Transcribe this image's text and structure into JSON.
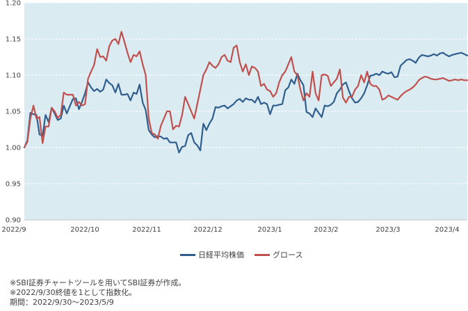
{
  "chart_data": {
    "type": "line",
    "title": "",
    "xlabel": "",
    "ylabel": "",
    "ylim": [
      0.9,
      1.2
    ],
    "yticks": [
      "0.90",
      "0.95",
      "1.00",
      "1.05",
      "1.10",
      "1.15",
      "1.20"
    ],
    "xticks": [
      "2022/9",
      "2022/10",
      "2022/11",
      "2022/12",
      "2023/1",
      "2023/2",
      "2023/3",
      "2023/4"
    ],
    "grid": true,
    "legend_position": "bottom-center",
    "colors": {
      "plot_background": "#dbebf2",
      "grid": "#ffffff"
    },
    "series": [
      {
        "name": "日経平均株価",
        "color": "#2e5d8e",
        "x": [
          "2022/9/30",
          "2022/10/3",
          "2022/10/4",
          "2022/10/5",
          "2022/10/6",
          "2022/10/7",
          "2022/10/11",
          "2022/10/12",
          "2022/10/13",
          "2022/10/14",
          "2022/10/17",
          "2022/10/18",
          "2022/10/19",
          "2022/10/20",
          "2022/10/21",
          "2022/10/24",
          "2022/10/25",
          "2022/10/26",
          "2022/10/27",
          "2022/10/28",
          "2022/10/31",
          "2022/11/1",
          "2022/11/2",
          "2022/11/4",
          "2022/11/7",
          "2022/11/8",
          "2022/11/9",
          "2022/11/10",
          "2022/11/11",
          "2022/11/14",
          "2022/11/15",
          "2022/11/16",
          "2022/11/17",
          "2022/11/18",
          "2022/11/21",
          "2022/11/22",
          "2022/11/24",
          "2022/11/25",
          "2022/11/28",
          "2022/11/29",
          "2022/11/30",
          "2022/12/1",
          "2022/12/2",
          "2022/12/5",
          "2022/12/6",
          "2022/12/7",
          "2022/12/8",
          "2022/12/9",
          "2022/12/12",
          "2022/12/13",
          "2022/12/14",
          "2022/12/15",
          "2022/12/16",
          "2022/12/19",
          "2022/12/20",
          "2022/12/21",
          "2022/12/22",
          "2022/12/23",
          "2022/12/26",
          "2022/12/27",
          "2022/12/28",
          "2022/12/29",
          "2022/12/30",
          "2023/1/4",
          "2023/1/5",
          "2023/1/6",
          "2023/1/10",
          "2023/1/11",
          "2023/1/12",
          "2023/1/13",
          "2023/1/16",
          "2023/1/17",
          "2023/1/18",
          "2023/1/19",
          "2023/1/20",
          "2023/1/23",
          "2023/1/24",
          "2023/1/25",
          "2023/1/26",
          "2023/1/27",
          "2023/1/30",
          "2023/1/31",
          "2023/2/1",
          "2023/2/2",
          "2023/2/3",
          "2023/2/6",
          "2023/2/7",
          "2023/2/8",
          "2023/2/9",
          "2023/2/10",
          "2023/2/13",
          "2023/2/14",
          "2023/2/15",
          "2023/2/16",
          "2023/2/17",
          "2023/2/20",
          "2023/2/21",
          "2023/2/22",
          "2023/2/24",
          "2023/2/27",
          "2023/2/28",
          "2023/3/1",
          "2023/3/2",
          "2023/3/3",
          "2023/3/6",
          "2023/3/7",
          "2023/3/8",
          "2023/3/9",
          "2023/3/10",
          "2023/3/13",
          "2023/3/14",
          "2023/3/15",
          "2023/3/16",
          "2023/3/17",
          "2023/3/20",
          "2023/3/22",
          "2023/3/23",
          "2023/3/24",
          "2023/3/27",
          "2023/3/28",
          "2023/3/29",
          "2023/3/30",
          "2023/3/31",
          "2023/4/3",
          "2023/4/4",
          "2023/4/5",
          "2023/4/6",
          "2023/4/7",
          "2023/4/10",
          "2023/4/11",
          "2023/4/12",
          "2023/4/13",
          "2023/4/14",
          "2023/4/17",
          "2023/4/18",
          "2023/4/19",
          "2023/4/20",
          "2023/4/21",
          "2023/4/24",
          "2023/4/25",
          "2023/4/26",
          "2023/4/27",
          "2023/4/28",
          "2023/5/1",
          "2023/5/2",
          "2023/5/8",
          "2023/5/9"
        ],
        "values": [
          1.0,
          1.01,
          1.048,
          1.046,
          1.045,
          1.018,
          1.016,
          1.045,
          1.035,
          1.055,
          1.047,
          1.038,
          1.04,
          1.058,
          1.047,
          1.057,
          1.067,
          1.068,
          1.053,
          1.063,
          1.075,
          1.09,
          1.083,
          1.078,
          1.081,
          1.077,
          1.08,
          1.094,
          1.089,
          1.086,
          1.076,
          1.088,
          1.073,
          1.073,
          1.074,
          1.065,
          1.076,
          1.074,
          1.087,
          1.062,
          1.052,
          1.024,
          1.018,
          1.014,
          1.016,
          1.015,
          1.012,
          1.013,
          1.007,
          1.007,
          1.007,
          0.993,
          1.001,
          1.002,
          1.017,
          1.02,
          1.007,
          1.003,
          0.996,
          1.033,
          1.024,
          1.033,
          1.04,
          1.056,
          1.055,
          1.057,
          1.058,
          1.054,
          1.057,
          1.06,
          1.065,
          1.067,
          1.063,
          1.068,
          1.066,
          1.066,
          1.062,
          1.07,
          1.06,
          1.062,
          1.06,
          1.046,
          1.058,
          1.058,
          1.059,
          1.06,
          1.079,
          1.083,
          1.094,
          1.088,
          1.102,
          1.093,
          1.086,
          1.049,
          1.047,
          1.042,
          1.054,
          1.048,
          1.042,
          1.058,
          1.057,
          1.059,
          1.063,
          1.075,
          1.08,
          1.087,
          1.09,
          1.078,
          1.068,
          1.062,
          1.063,
          1.068,
          1.075,
          1.086,
          1.099,
          1.1,
          1.102,
          1.1,
          1.105,
          1.103,
          1.102,
          1.104,
          1.097,
          1.098,
          1.113,
          1.117,
          1.121,
          1.122,
          1.12,
          1.117,
          1.124,
          1.128,
          1.127,
          1.126,
          1.127,
          1.129,
          1.127,
          1.13,
          1.131,
          1.128,
          1.126,
          1.128,
          1.129,
          1.13,
          1.131,
          1.129,
          1.127
        ]
      },
      {
        "name": "グロース",
        "color": "#c0504d",
        "x": [
          "2022/9/30",
          "2022/10/3",
          "2022/10/4",
          "2022/10/5",
          "2022/10/6",
          "2022/10/7",
          "2022/10/11",
          "2022/10/12",
          "2022/10/13",
          "2022/10/14",
          "2022/10/17",
          "2022/10/18",
          "2022/10/19",
          "2022/10/20",
          "2022/10/21",
          "2022/10/24",
          "2022/10/25",
          "2022/10/26",
          "2022/10/27",
          "2022/10/28",
          "2022/10/31",
          "2022/11/1",
          "2022/11/2",
          "2022/11/4",
          "2022/11/7",
          "2022/11/8",
          "2022/11/9",
          "2022/11/10",
          "2022/11/11",
          "2022/11/14",
          "2022/11/15",
          "2022/11/16",
          "2022/11/17",
          "2022/11/18",
          "2022/11/21",
          "2022/11/22",
          "2022/11/24",
          "2022/11/25",
          "2022/11/28",
          "2022/11/29",
          "2022/11/30",
          "2022/12/1",
          "2022/12/2",
          "2022/12/5",
          "2022/12/6",
          "2022/12/7",
          "2022/12/8",
          "2022/12/9",
          "2022/12/12",
          "2022/12/13",
          "2022/12/14",
          "2022/12/15",
          "2022/12/16",
          "2022/12/19",
          "2022/12/20",
          "2022/12/21",
          "2022/12/22",
          "2022/12/23",
          "2022/12/26",
          "2022/12/27",
          "2022/12/28",
          "2022/12/29",
          "2022/12/30",
          "2023/1/4",
          "2023/1/5",
          "2023/1/6",
          "2023/1/10",
          "2023/1/11",
          "2023/1/12",
          "2023/1/13",
          "2023/1/16",
          "2023/1/17",
          "2023/1/18",
          "2023/1/19",
          "2023/1/20",
          "2023/1/23",
          "2023/1/24",
          "2023/1/25",
          "2023/1/26",
          "2023/1/27",
          "2023/1/30",
          "2023/1/31",
          "2023/2/1",
          "2023/2/2",
          "2023/2/3",
          "2023/2/6",
          "2023/2/7",
          "2023/2/8",
          "2023/2/9",
          "2023/2/10",
          "2023/2/13",
          "2023/2/14",
          "2023/2/15",
          "2023/2/16",
          "2023/2/17",
          "2023/2/20",
          "2023/2/21",
          "2023/2/22",
          "2023/2/24",
          "2023/2/27",
          "2023/2/28",
          "2023/3/1",
          "2023/3/2",
          "2023/3/3",
          "2023/3/6",
          "2023/3/7",
          "2023/3/8",
          "2023/3/9",
          "2023/3/10",
          "2023/3/13",
          "2023/3/14",
          "2023/3/15",
          "2023/3/16",
          "2023/3/17",
          "2023/3/20",
          "2023/3/22",
          "2023/3/23",
          "2023/3/24",
          "2023/3/27",
          "2023/3/28",
          "2023/3/29",
          "2023/3/30",
          "2023/3/31",
          "2023/4/3",
          "2023/4/4",
          "2023/4/5",
          "2023/4/6",
          "2023/4/7",
          "2023/4/10",
          "2023/4/11",
          "2023/4/12",
          "2023/4/13",
          "2023/4/14",
          "2023/4/17",
          "2023/4/18",
          "2023/4/19",
          "2023/4/20",
          "2023/4/21",
          "2023/4/24",
          "2023/4/25",
          "2023/4/26",
          "2023/4/27",
          "2023/4/28",
          "2023/5/1",
          "2023/5/2",
          "2023/5/8",
          "2023/5/9"
        ],
        "values": [
          1.0,
          1.008,
          1.04,
          1.058,
          1.04,
          1.042,
          1.006,
          1.029,
          1.029,
          1.055,
          1.05,
          1.041,
          1.045,
          1.076,
          1.073,
          1.073,
          1.073,
          1.058,
          1.063,
          1.058,
          1.06,
          1.095,
          1.105,
          1.114,
          1.136,
          1.125,
          1.126,
          1.12,
          1.14,
          1.148,
          1.15,
          1.143,
          1.16,
          1.146,
          1.131,
          1.118,
          1.128,
          1.126,
          1.133,
          1.115,
          1.1,
          1.04,
          1.02,
          1.018,
          1.012,
          1.03,
          1.04,
          1.05,
          1.05,
          1.025,
          1.03,
          1.029,
          1.045,
          1.07,
          1.06,
          1.05,
          1.04,
          1.06,
          1.08,
          1.1,
          1.108,
          1.118,
          1.113,
          1.11,
          1.115,
          1.125,
          1.128,
          1.12,
          1.118,
          1.138,
          1.141,
          1.118,
          1.105,
          1.115,
          1.1,
          1.112,
          1.11,
          1.105,
          1.085,
          1.088,
          1.08,
          1.078,
          1.07,
          1.075,
          1.09,
          1.1,
          1.105,
          1.115,
          1.125,
          1.105,
          1.1,
          1.08,
          1.065,
          1.075,
          1.07,
          1.105,
          1.075,
          1.065,
          1.1,
          1.101,
          1.099,
          1.085,
          1.09,
          1.095,
          1.108,
          1.069,
          1.062,
          1.07,
          1.07,
          1.08,
          1.085,
          1.1,
          1.09,
          1.105,
          1.088,
          1.085,
          1.085,
          1.08,
          1.066,
          1.068,
          1.072,
          1.07,
          1.068,
          1.066,
          1.071,
          1.075,
          1.078,
          1.08,
          1.083,
          1.087,
          1.093,
          1.096,
          1.098,
          1.097,
          1.095,
          1.094,
          1.094,
          1.095,
          1.096,
          1.094,
          1.092,
          1.093,
          1.094,
          1.093,
          1.094,
          1.093,
          1.093
        ]
      }
    ]
  },
  "notes": [
    "※SBI証券チャートツールを用いてSBI証券が作成。",
    "※2022/9/30終値を1として指数化。",
    "期間：2022/9/30～2023/5/9"
  ]
}
